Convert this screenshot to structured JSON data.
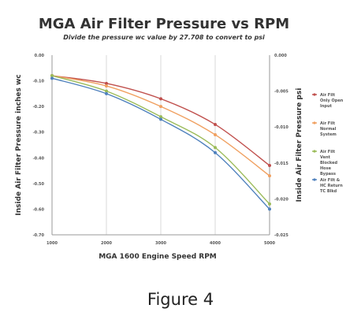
{
  "figure_caption": "Figure 4",
  "chart_data": {
    "type": "line",
    "title": "MGA Air Filter Pressure vs RPM",
    "subtitle": "Divide the pressure wc value by 27.708 to convert to psi",
    "xlabel": "MGA 1600 Engine Speed RPM",
    "ylabel_left": "Inside Air Filter Pressure inches wc",
    "ylabel_right": "Inside Air Filter Pressure psi",
    "x": [
      1000,
      2000,
      3000,
      4000,
      5000
    ],
    "x_ticks": [
      "1000",
      "2000",
      "3000",
      "4000",
      "5000"
    ],
    "ylim": [
      -0.7,
      0.0
    ],
    "y_ticks_left": [
      "0.00",
      "-0.10",
      "-0.20",
      "-0.30",
      "-0.40",
      "-0.50",
      "-0.60",
      "-0.70"
    ],
    "ylim_right": [
      -0.025,
      0.0
    ],
    "y_ticks_right": [
      "0.000",
      "-0.005",
      "-0.010",
      "-0.015",
      "-0.020",
      "-0.025"
    ],
    "grid": "vertical",
    "legend_position": "right",
    "series": [
      {
        "name": "Air Filt Only Open Input",
        "color": "#c0504d",
        "values": [
          -0.08,
          -0.11,
          -0.17,
          -0.27,
          -0.43
        ]
      },
      {
        "name": "Air Filt Normal System",
        "color": "#f0a060",
        "values": [
          -0.08,
          -0.12,
          -0.2,
          -0.31,
          -0.47
        ]
      },
      {
        "name": "Air Filt Vent Blocked Hose Bypass",
        "color": "#9bbb59",
        "values": [
          -0.08,
          -0.14,
          -0.24,
          -0.36,
          -0.58
        ]
      },
      {
        "name": "Air Filt & HC Return TC Blkd",
        "color": "#4f81bd",
        "values": [
          -0.09,
          -0.15,
          -0.25,
          -0.38,
          -0.6
        ]
      }
    ]
  }
}
